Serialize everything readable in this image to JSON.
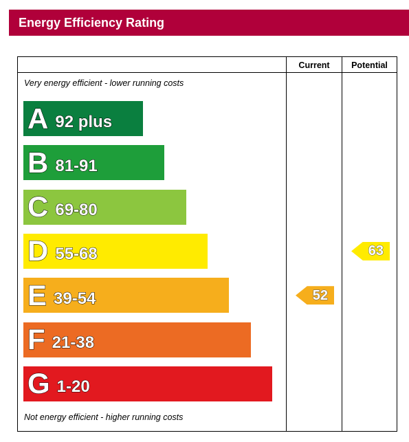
{
  "header": {
    "title": "Energy Efficiency Rating",
    "color": "#b0003a"
  },
  "columns": {
    "current": "Current",
    "potential": "Potential"
  },
  "notes": {
    "top": "Very energy efficient - lower running costs",
    "bottom": "Not energy efficient - higher running costs"
  },
  "chart_data": {
    "type": "bar",
    "categories": [
      "A",
      "B",
      "C",
      "D",
      "E",
      "F",
      "G"
    ],
    "ranges": [
      "92 plus",
      "81-91",
      "69-80",
      "55-68",
      "39-54",
      "21-38",
      "1-20"
    ],
    "colors": [
      "#0a7f3f",
      "#1e9e3a",
      "#8cc63f",
      "#ffeb00",
      "#f6ae1c",
      "#ec6b23",
      "#e2191f"
    ],
    "current": 52,
    "potential": 63,
    "current_band": "E",
    "potential_band": "D"
  }
}
